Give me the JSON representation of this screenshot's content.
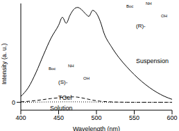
{
  "chart_data": {
    "type": "line",
    "x_label": "Wavelength (nm)",
    "y_label": "Intensity (a. u.)",
    "xlim": [
      400,
      600
    ],
    "xticks": [
      400,
      450,
      500,
      550,
      600
    ],
    "ylim": [
      -80,
      1000
    ],
    "yticks": [
      0
    ],
    "grid": false,
    "x": [
      400,
      410,
      420,
      430,
      440,
      450,
      455,
      460,
      465,
      470,
      475,
      480,
      485,
      490,
      495,
      500,
      505,
      510,
      520,
      530,
      540,
      550,
      560,
      570,
      580,
      590,
      600
    ],
    "series": [
      {
        "name": "Suspension",
        "color": "#000000",
        "line_style": "solid",
        "values": [
          60,
          150,
          300,
          480,
          650,
          780,
          860,
          800,
          880,
          940,
          960,
          940,
          900,
          870,
          930,
          900,
          820,
          700,
          560,
          450,
          360,
          280,
          210,
          150,
          100,
          60,
          30
        ]
      },
      {
        "name": "TGel",
        "color": "#000000",
        "line_style": "dashed",
        "values": [
          5,
          10,
          18,
          28,
          38,
          46,
          50,
          52,
          54,
          55,
          52,
          46,
          38,
          30,
          22,
          16,
          11,
          8,
          4,
          2,
          1,
          0,
          0,
          0,
          0,
          0,
          0
        ]
      },
      {
        "name": "Solution",
        "color": "#000000",
        "line_style": "dotted",
        "values": [
          0,
          1,
          2,
          3,
          4,
          4,
          5,
          5,
          5,
          5,
          5,
          4,
          4,
          4,
          3,
          3,
          2,
          2,
          1,
          1,
          0,
          0,
          0,
          0,
          0,
          0,
          0
        ]
      }
    ],
    "annotations": [
      "(R)-",
      "Suspension",
      "(S)-",
      "TGel",
      "Solution",
      "Boc",
      "NH",
      "OH",
      "Boc",
      "NH",
      "OH"
    ]
  }
}
